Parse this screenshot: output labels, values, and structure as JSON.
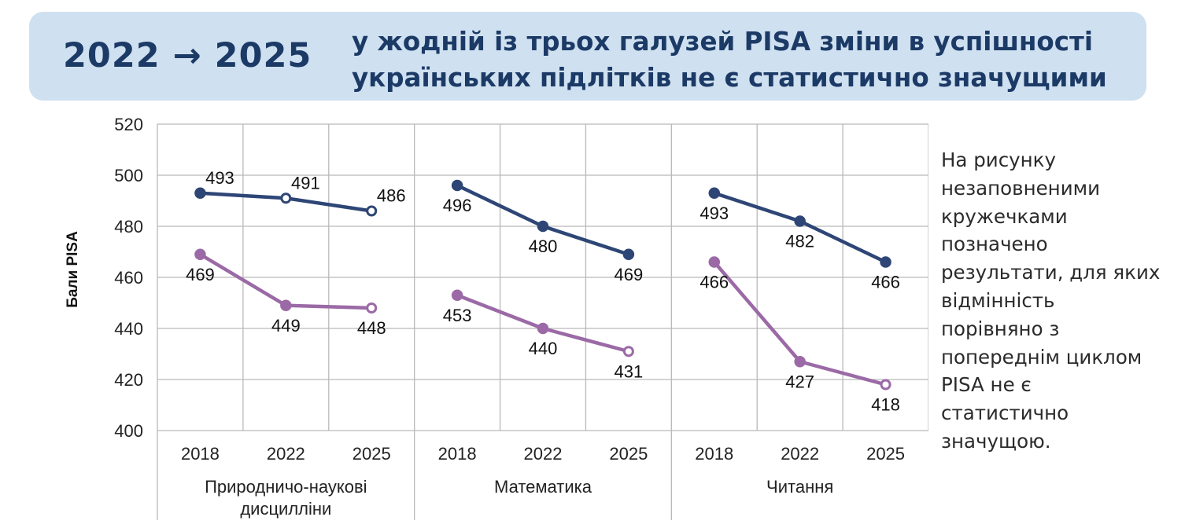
{
  "banner": {
    "years": "2022 → 2025",
    "headline_line1": "у жодній із трьох галузей PISA зміни в успішності",
    "headline_line2": "українських підлітків не є статистично значущими"
  },
  "note_lines": [
    "На рисунку",
    "незаповненими",
    "кружечками",
    "позначено",
    "результати, для яких",
    "відмінність",
    "порівняно з",
    "попереднім циклом",
    "PISA не є",
    "статистично",
    "значущою."
  ],
  "colors": {
    "upper_series": "#2e4676",
    "lower_series": "#9b6aa6",
    "banner_bg": "#cfe0f0",
    "banner_text": "#1c3a66",
    "grid": "#b9b9b9"
  },
  "chart_data": {
    "type": "line",
    "ylabel": "Бали PISA",
    "ylim": [
      400,
      520
    ],
    "yticks": [
      400,
      420,
      440,
      460,
      480,
      500,
      520
    ],
    "grid": true,
    "groups": [
      {
        "name": "Природничо-наукові дисцилліни",
        "name_lines": [
          "Природничо-наукові",
          "дисцилліни"
        ],
        "years": [
          "2018",
          "2022",
          "2025"
        ],
        "series": [
          {
            "key": "upper",
            "values": [
              493,
              491,
              486
            ],
            "hollow": [
              false,
              true,
              true
            ],
            "label_pos": [
              "above",
              "above",
              "above"
            ]
          },
          {
            "key": "lower",
            "values": [
              469,
              449,
              448
            ],
            "hollow": [
              false,
              false,
              true
            ],
            "label_pos": [
              "below",
              "below",
              "below"
            ]
          }
        ]
      },
      {
        "name": "Математика",
        "name_lines": [
          "Математика"
        ],
        "years": [
          "2018",
          "2022",
          "2025"
        ],
        "series": [
          {
            "key": "upper",
            "values": [
              496,
              480,
              469
            ],
            "hollow": [
              false,
              false,
              false
            ],
            "label_pos": [
              "below",
              "below",
              "below"
            ]
          },
          {
            "key": "lower",
            "values": [
              453,
              440,
              431
            ],
            "hollow": [
              false,
              false,
              true
            ],
            "label_pos": [
              "below",
              "below",
              "below"
            ]
          }
        ]
      },
      {
        "name": "Читання",
        "name_lines": [
          "Читання"
        ],
        "years": [
          "2018",
          "2022",
          "2025"
        ],
        "series": [
          {
            "key": "upper",
            "values": [
              493,
              482,
              466
            ],
            "hollow": [
              false,
              false,
              false
            ],
            "label_pos": [
              "below",
              "below",
              "below"
            ]
          },
          {
            "key": "lower",
            "values": [
              466,
              427,
              418
            ],
            "hollow": [
              false,
              false,
              true
            ],
            "label_pos": [
              "below",
              "below",
              "below"
            ]
          }
        ]
      }
    ]
  }
}
